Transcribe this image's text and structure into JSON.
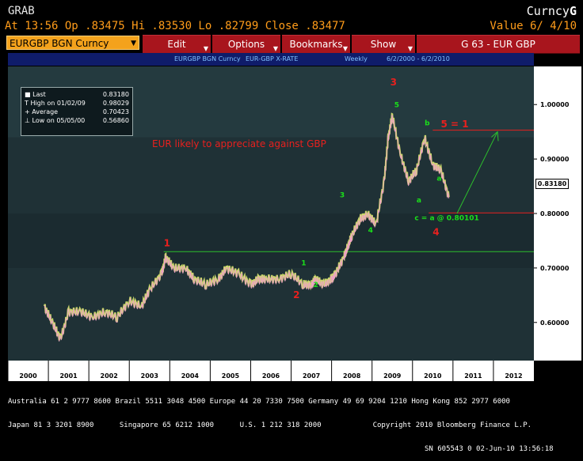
{
  "header": {
    "left_title": "GRAB",
    "right_title_prefix": "Curncy",
    "right_title_suffix": "G",
    "quote_line": "At 13:56 Op .83475 Hi .83530 Lo .82799 Close .83477",
    "value_line": "Value  6/ 4/10"
  },
  "toolbar": {
    "security": "EURGBP BGN Curncy",
    "edit": "Edit",
    "options": "Options",
    "bookmarks": "Bookmarks",
    "show": "Show",
    "page_id": "G 63 - EUR GBP"
  },
  "subheader": {
    "ticker": "EURGBP BGN Curncy",
    "desc": "EUR-GBP X-RATE",
    "period": "Weekly",
    "range": "6/2/2000  -  6/2/2010"
  },
  "legend": {
    "last_label": "Last",
    "last_value": "0.83180",
    "high_label": "High on 01/02/09",
    "high_value": "0.98029",
    "avg_label": "Average",
    "avg_value": "0.70423",
    "low_label": "Low on 05/05/00",
    "low_value": "0.56860"
  },
  "annotation": "EUR likely to appreciate against GBP",
  "price_tag": "0.83180",
  "colors": {
    "accent": "#a8151d",
    "security_bg": "#f4a21c",
    "plot_bg": "#1f3136",
    "wave_labels": "#e8201e",
    "sub_waves": "#1ae01a"
  },
  "chart_data": {
    "type": "line",
    "title": "",
    "xlabel": "",
    "ylabel": "",
    "x_ticks": [
      "2000",
      "2001",
      "2002",
      "2003",
      "2004",
      "2005",
      "2006",
      "2007",
      "2008",
      "2009",
      "2010",
      "2011",
      "2012"
    ],
    "y_ticks": [
      "1.00000",
      "0.90000",
      "0.80000",
      "0.70000",
      "0.60000"
    ],
    "ylim": [
      0.53,
      1.07
    ],
    "grid": false,
    "series": [
      {
        "values": [
          [
            2000.4,
            0.63
          ],
          [
            2000.6,
            0.6
          ],
          [
            2000.8,
            0.57
          ],
          [
            2001.0,
            0.62
          ],
          [
            2001.3,
            0.62
          ],
          [
            2001.6,
            0.61
          ],
          [
            2001.9,
            0.62
          ],
          [
            2002.2,
            0.61
          ],
          [
            2002.5,
            0.64
          ],
          [
            2002.8,
            0.63
          ],
          [
            2003.0,
            0.66
          ],
          [
            2003.3,
            0.69
          ],
          [
            2003.4,
            0.72
          ],
          [
            2003.6,
            0.7
          ],
          [
            2003.9,
            0.7
          ],
          [
            2004.1,
            0.68
          ],
          [
            2004.4,
            0.67
          ],
          [
            2004.7,
            0.68
          ],
          [
            2004.9,
            0.7
          ],
          [
            2005.2,
            0.69
          ],
          [
            2005.5,
            0.67
          ],
          [
            2005.7,
            0.68
          ],
          [
            2005.9,
            0.68
          ],
          [
            2006.2,
            0.68
          ],
          [
            2006.5,
            0.69
          ],
          [
            2006.8,
            0.67
          ],
          [
            2007.0,
            0.67
          ],
          [
            2007.1,
            0.68
          ],
          [
            2007.3,
            0.67
          ],
          [
            2007.5,
            0.68
          ],
          [
            2007.6,
            0.69
          ],
          [
            2007.8,
            0.72
          ],
          [
            2007.9,
            0.74
          ],
          [
            2008.0,
            0.76
          ],
          [
            2008.2,
            0.79
          ],
          [
            2008.4,
            0.8
          ],
          [
            2008.6,
            0.78
          ],
          [
            2008.8,
            0.86
          ],
          [
            2008.9,
            0.94
          ],
          [
            2009.0,
            0.98
          ],
          [
            2009.2,
            0.91
          ],
          [
            2009.4,
            0.86
          ],
          [
            2009.6,
            0.88
          ],
          [
            2009.8,
            0.94
          ],
          [
            2010.0,
            0.89
          ],
          [
            2010.2,
            0.88
          ],
          [
            2010.4,
            0.83
          ]
        ]
      }
    ],
    "horizontal_lines": [
      0.73,
      0.953,
      0.801
    ],
    "wave_labels": [
      {
        "text": "1",
        "x": 2003.35,
        "y": 0.74,
        "color": "red"
      },
      {
        "text": "2",
        "x": 2006.55,
        "y": 0.645,
        "color": "red"
      },
      {
        "text": "3",
        "x": 2008.95,
        "y": 1.035,
        "color": "red"
      },
      {
        "text": "4",
        "x": 2010.0,
        "y": 0.76,
        "color": "red"
      },
      {
        "text": "5 = 1",
        "x": 2010.2,
        "y": 0.958,
        "color": "red"
      },
      {
        "text": "1",
        "x": 2006.75,
        "y": 0.705,
        "color": "green"
      },
      {
        "text": "2",
        "x": 2007.05,
        "y": 0.665,
        "color": "green"
      },
      {
        "text": "3",
        "x": 2007.7,
        "y": 0.83,
        "color": "green"
      },
      {
        "text": "4",
        "x": 2008.4,
        "y": 0.765,
        "color": "green"
      },
      {
        "text": "5",
        "x": 2009.05,
        "y": 0.995,
        "color": "green"
      },
      {
        "text": "a",
        "x": 2009.6,
        "y": 0.82,
        "color": "green"
      },
      {
        "text": "b",
        "x": 2009.8,
        "y": 0.962,
        "color": "green"
      },
      {
        "text": "a",
        "x": 2010.1,
        "y": 0.86,
        "color": "green"
      },
      {
        "text": "c = a @ 0.80101",
        "x": 2009.55,
        "y": 0.788,
        "color": "green"
      }
    ]
  },
  "footer": {
    "line1": "Australia 61 2 9777 8600 Brazil 5511 3048 4500 Europe 44 20 7330 7500 Germany 49 69 9204 1210 Hong Kong 852 2977 6000",
    "line2": "Japan 81 3 3201 8900      Singapore 65 6212 1000      U.S. 1 212 318 2000            Copyright 2010 Bloomberg Finance L.P.",
    "line3": "SN 605543 0 02-Jun-10 13:56:18"
  }
}
